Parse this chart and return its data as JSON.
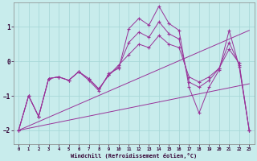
{
  "xlabel": "Windchill (Refroidissement éolien,°C)",
  "bg_color": "#c8ecec",
  "grid_color": "#a8d8d8",
  "line_color": "#993399",
  "xlim": [
    -0.5,
    23.5
  ],
  "ylim": [
    -2.4,
    1.7
  ],
  "xticks": [
    0,
    1,
    2,
    3,
    4,
    5,
    6,
    7,
    8,
    9,
    10,
    11,
    12,
    13,
    14,
    15,
    16,
    17,
    18,
    19,
    20,
    21,
    22,
    23
  ],
  "yticks": [
    -2,
    -1,
    0,
    1
  ],
  "series1_y": [
    -2.0,
    -1.0,
    -1.6,
    -0.5,
    -0.45,
    -0.55,
    -0.3,
    -0.55,
    -0.85,
    -0.35,
    -0.2,
    0.95,
    1.25,
    1.05,
    1.6,
    1.1,
    0.9,
    -0.75,
    -1.5,
    -0.75,
    -0.25,
    0.9,
    -0.15,
    -2.0
  ],
  "series2_y": [
    -2.0,
    -1.0,
    -1.6,
    -0.5,
    -0.45,
    -0.55,
    -0.3,
    -0.5,
    -0.8,
    -0.4,
    -0.15,
    0.55,
    0.85,
    0.7,
    1.15,
    0.8,
    0.65,
    -0.6,
    -0.75,
    -0.55,
    -0.2,
    0.55,
    -0.1,
    -2.0
  ],
  "series3_y": [
    -2.0,
    -1.0,
    -1.6,
    -0.5,
    -0.45,
    -0.55,
    -0.3,
    -0.5,
    -0.8,
    -0.4,
    -0.1,
    0.2,
    0.5,
    0.4,
    0.75,
    0.5,
    0.4,
    -0.45,
    -0.6,
    -0.45,
    -0.2,
    0.35,
    -0.05,
    -2.0
  ],
  "trend1_x": [
    0,
    23
  ],
  "trend1_y": [
    -2.0,
    0.9
  ],
  "trend2_x": [
    0,
    23
  ],
  "trend2_y": [
    -2.0,
    -0.65
  ]
}
